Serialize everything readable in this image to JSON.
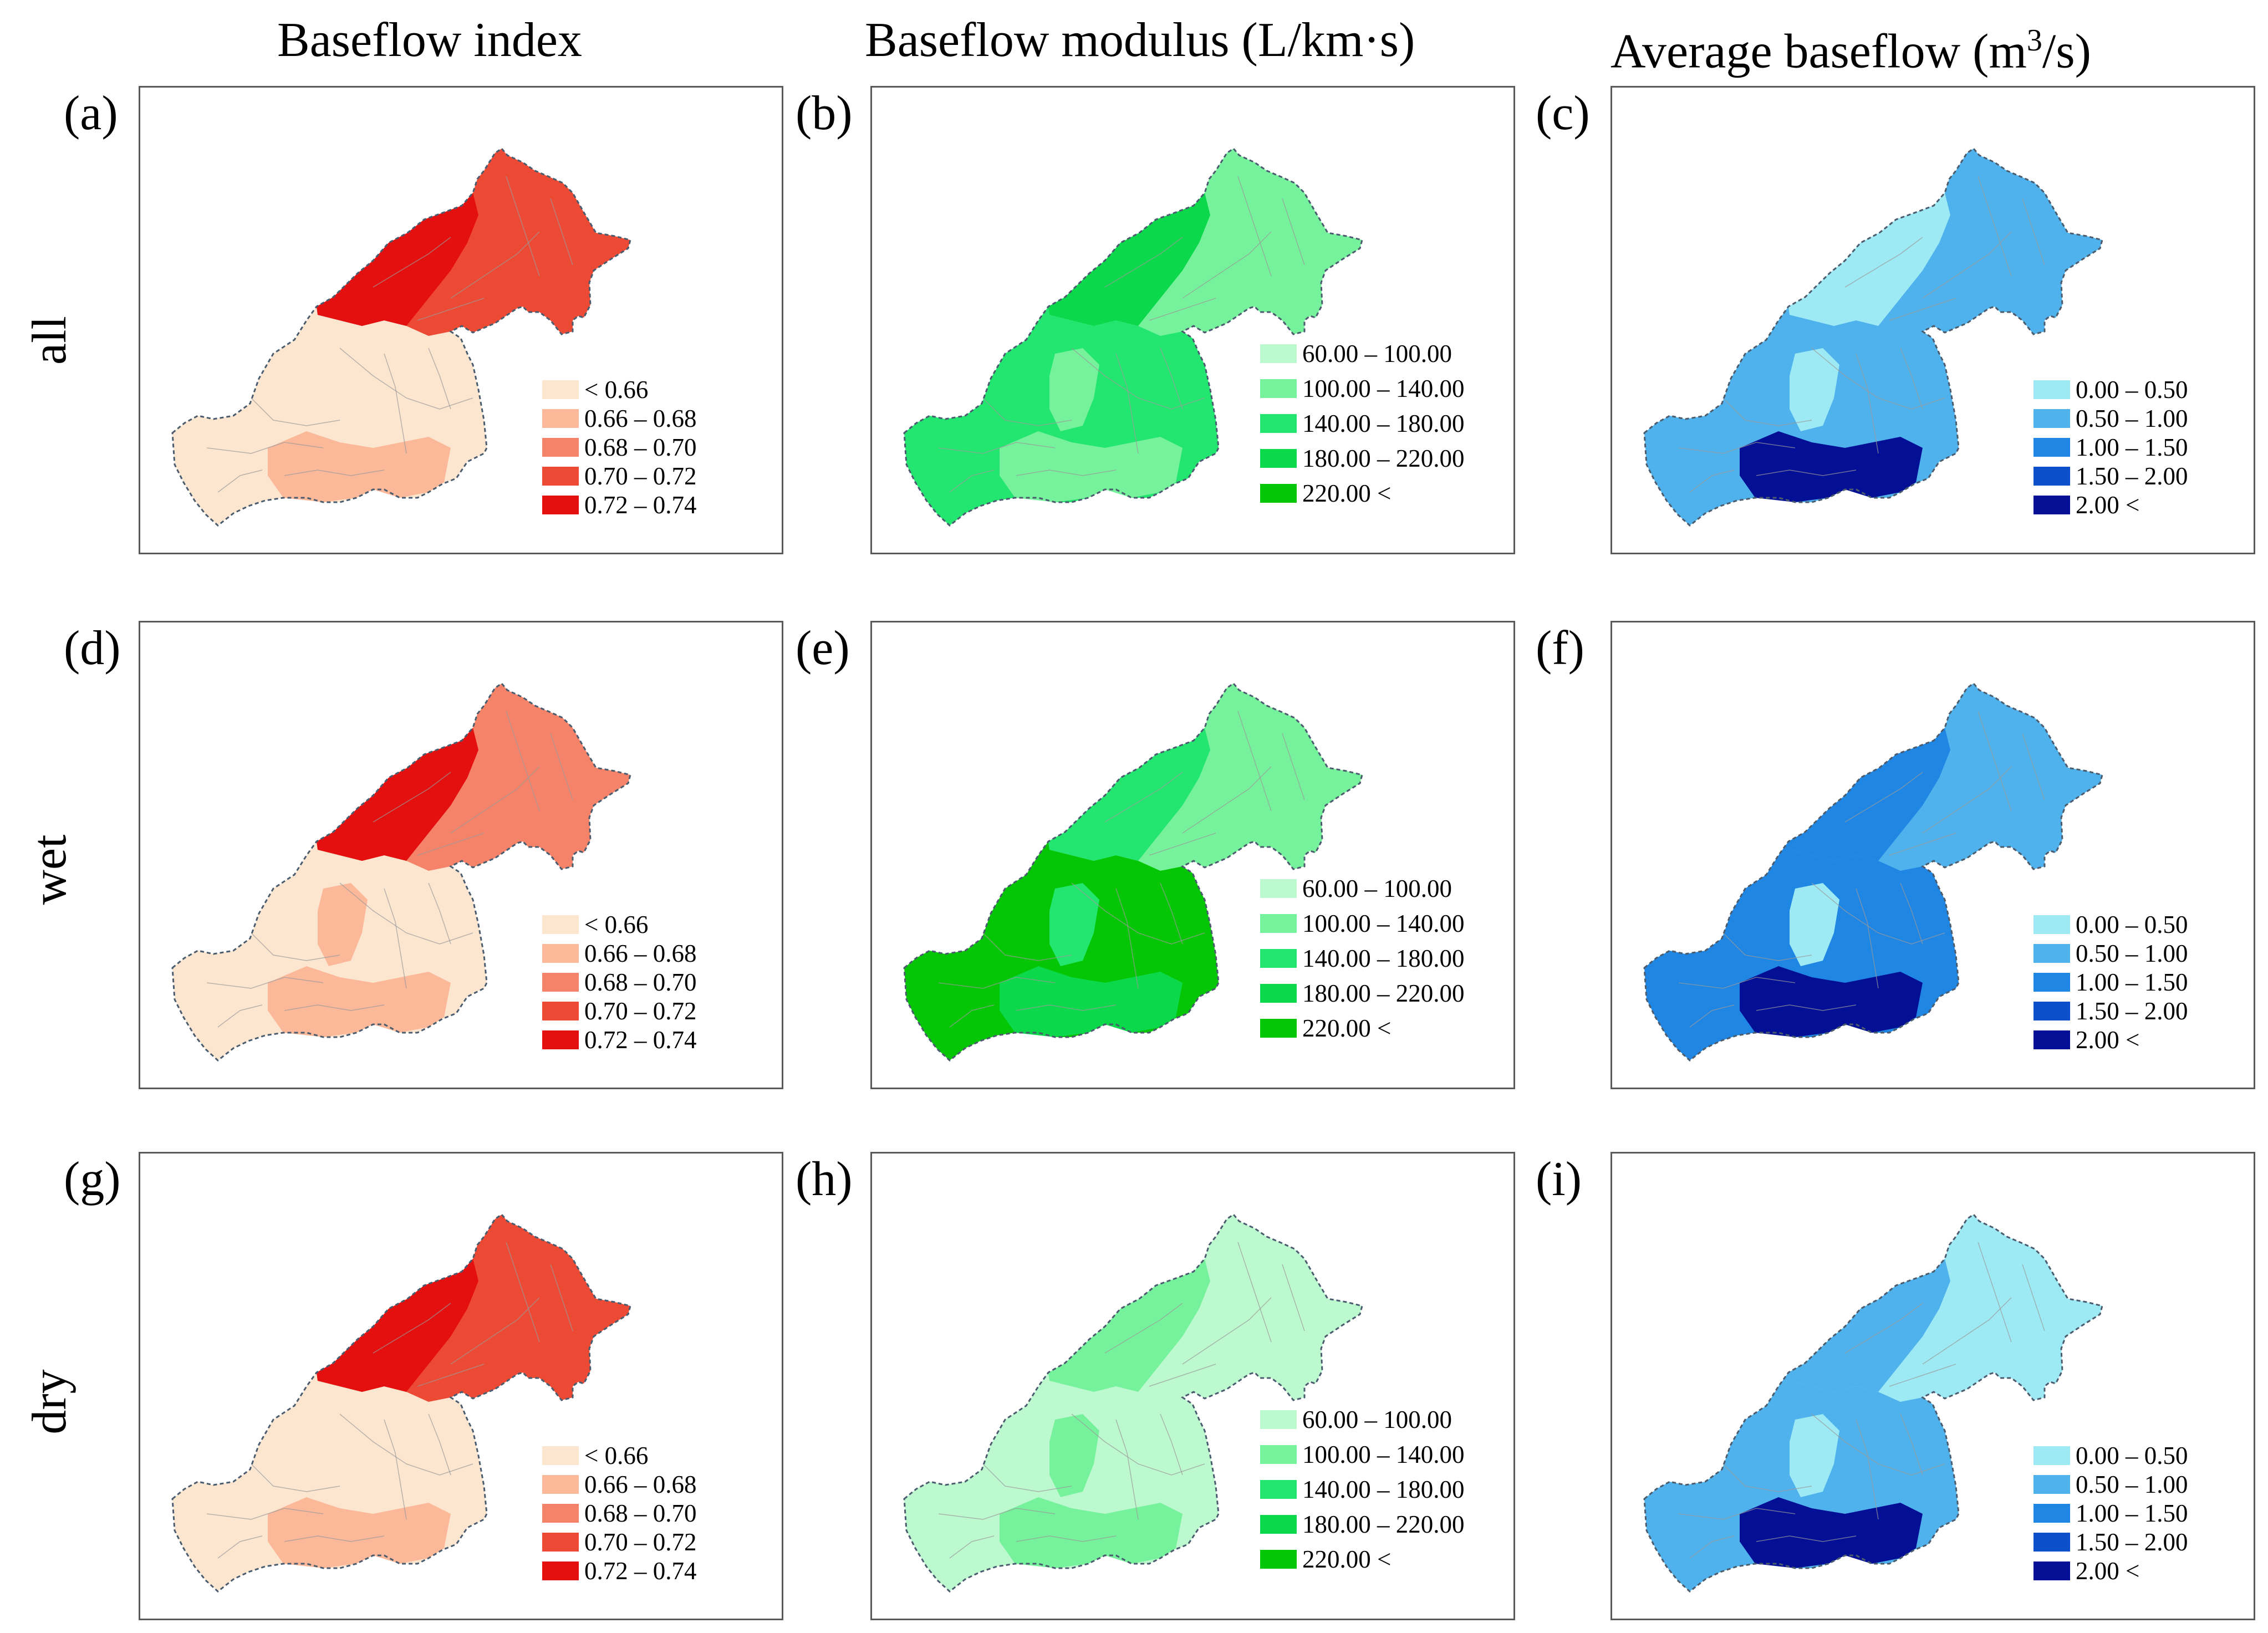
{
  "columns": [
    {
      "id": "bfi",
      "title": "Baseflow index",
      "title_sup": ""
    },
    {
      "id": "modulus",
      "title": "Baseflow modulus (L/km·s)",
      "title_sup": ""
    },
    {
      "id": "average",
      "title": "Average baseflow (m",
      "title_sup": "3",
      "title_tail": "/s)"
    }
  ],
  "rows": [
    {
      "id": "all",
      "label": "all"
    },
    {
      "id": "wet",
      "label": "wet"
    },
    {
      "id": "dry",
      "label": "dry"
    }
  ],
  "legends": {
    "bfi": {
      "labels": [
        "< 0.66",
        "0.66 – 0.68",
        "0.68 – 0.70",
        "0.70 – 0.72",
        "0.72 – 0.74"
      ],
      "colors": [
        "#fde6d0",
        "#fcb99a",
        "#f5836a",
        "#ec4a35",
        "#e40f0f"
      ]
    },
    "modulus": {
      "labels": [
        "60.00 – 100.00",
        "100.00 – 140.00",
        "140.00 – 180.00",
        "180.00 – 220.00",
        "220.00 <"
      ],
      "colors": [
        "#bcf9cf",
        "#77f29c",
        "#22e66f",
        "#0bd84a",
        "#05c605"
      ]
    },
    "average": {
      "labels": [
        "0.00 – 0.50",
        "0.50 – 1.00",
        "1.00 – 1.50",
        "1.50 – 2.00",
        "2.00 <"
      ],
      "colors": [
        "#9eeaf4",
        "#4fb2ec",
        "#1f86e4",
        "#0b4fcb",
        "#030f94"
      ]
    }
  },
  "panels": [
    {
      "letter": "(a)",
      "row": "all",
      "column": "bfi",
      "north_class": 3,
      "north_accent_class": 4,
      "south_class": 0,
      "south_accent_class": 1,
      "mid_class": 0
    },
    {
      "letter": "(b)",
      "row": "all",
      "column": "modulus",
      "north_class": 1,
      "north_accent_class": 3,
      "south_class": 2,
      "south_accent_class": 1,
      "mid_class": 1
    },
    {
      "letter": "(c)",
      "row": "all",
      "column": "average",
      "north_class": 1,
      "north_accent_class": 0,
      "south_class": 1,
      "south_accent_class": 4,
      "mid_class": 0
    },
    {
      "letter": "(d)",
      "row": "wet",
      "column": "bfi",
      "north_class": 2,
      "north_accent_class": 4,
      "south_class": 0,
      "south_accent_class": 1,
      "mid_class": 1
    },
    {
      "letter": "(e)",
      "row": "wet",
      "column": "modulus",
      "north_class": 1,
      "north_accent_class": 2,
      "south_class": 4,
      "south_accent_class": 3,
      "mid_class": 2
    },
    {
      "letter": "(f)",
      "row": "wet",
      "column": "average",
      "north_class": 1,
      "north_accent_class": 2,
      "south_class": 2,
      "south_accent_class": 4,
      "mid_class": 0
    },
    {
      "letter": "(g)",
      "row": "dry",
      "column": "bfi",
      "north_class": 3,
      "north_accent_class": 4,
      "south_class": 0,
      "south_accent_class": 1,
      "mid_class": 0
    },
    {
      "letter": "(h)",
      "row": "dry",
      "column": "modulus",
      "north_class": 0,
      "north_accent_class": 1,
      "south_class": 0,
      "south_accent_class": 1,
      "mid_class": 1
    },
    {
      "letter": "(i)",
      "row": "dry",
      "column": "average",
      "north_class": 0,
      "north_accent_class": 1,
      "south_class": 1,
      "south_accent_class": 4,
      "mid_class": 0
    }
  ]
}
